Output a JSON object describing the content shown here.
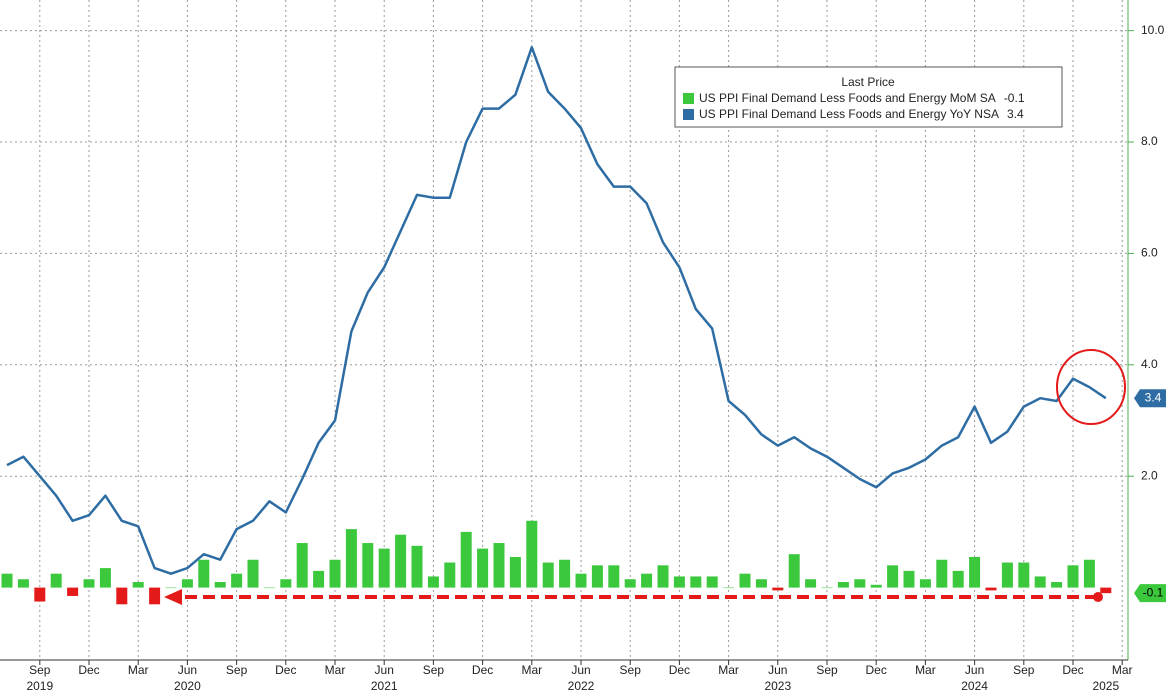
{
  "chart_data": {
    "type": "bar-line",
    "x": [
      "2019-07",
      "2019-08",
      "2019-09",
      "2019-10",
      "2019-11",
      "2019-12",
      "2020-01",
      "2020-02",
      "2020-03",
      "2020-04",
      "2020-05",
      "2020-06",
      "2020-07",
      "2020-08",
      "2020-09",
      "2020-10",
      "2020-11",
      "2020-12",
      "2021-01",
      "2021-02",
      "2021-03",
      "2021-04",
      "2021-05",
      "2021-06",
      "2021-07",
      "2021-08",
      "2021-09",
      "2021-10",
      "2021-11",
      "2021-12",
      "2022-01",
      "2022-02",
      "2022-03",
      "2022-04",
      "2022-05",
      "2022-06",
      "2022-07",
      "2022-08",
      "2022-09",
      "2022-10",
      "2022-11",
      "2022-12",
      "2023-01",
      "2023-02",
      "2023-03",
      "2023-04",
      "2023-05",
      "2023-06",
      "2023-07",
      "2023-08",
      "2023-09",
      "2023-10",
      "2023-11",
      "2023-12",
      "2024-01",
      "2024-02",
      "2024-03",
      "2024-04",
      "2024-05",
      "2024-06",
      "2024-07",
      "2024-08",
      "2024-09",
      "2024-10",
      "2024-11",
      "2024-12",
      "2025-01",
      "2025-02"
    ],
    "legend_title": "Last Price",
    "series": [
      {
        "name": "US PPI Final Demand Less Foods and Energy MoM SA",
        "type": "bar",
        "color": "#3cc83c",
        "negative_color": "#e41a1a",
        "end_label": "-0.1",
        "values": [
          0.25,
          0.15,
          -0.25,
          0.25,
          -0.15,
          0.15,
          0.35,
          -0.3,
          0.1,
          -0.3,
          0.0,
          0.15,
          0.5,
          0.1,
          0.25,
          0.5,
          0.0,
          0.15,
          0.8,
          0.3,
          0.5,
          1.05,
          0.8,
          0.7,
          0.95,
          0.75,
          0.2,
          0.45,
          1.0,
          0.7,
          0.8,
          0.55,
          1.2,
          0.45,
          0.5,
          0.25,
          0.4,
          0.4,
          0.15,
          0.25,
          0.4,
          0.2,
          0.2,
          0.2,
          0.0,
          0.25,
          0.15,
          -0.05,
          0.6,
          0.15,
          0.0,
          0.1,
          0.15,
          0.05,
          0.4,
          0.3,
          0.15,
          0.5,
          0.3,
          0.55,
          -0.05,
          0.45,
          0.45,
          0.2,
          0.1,
          0.4,
          0.5,
          -0.1
        ]
      },
      {
        "name": "US PPI Final Demand Less Foods and Energy YoY NSA",
        "type": "line",
        "color": "#2e6da4",
        "end_label": "3.4",
        "values": [
          2.2,
          2.35,
          2.0,
          1.65,
          1.2,
          1.3,
          1.65,
          1.2,
          1.1,
          0.35,
          0.25,
          0.35,
          0.6,
          0.5,
          1.05,
          1.2,
          1.55,
          1.35,
          1.95,
          2.6,
          3.0,
          4.6,
          5.3,
          5.75,
          6.4,
          7.05,
          7.0,
          7.0,
          8.0,
          8.6,
          8.6,
          8.85,
          9.7,
          8.9,
          8.6,
          8.25,
          7.6,
          7.2,
          7.2,
          6.9,
          6.2,
          5.75,
          5.0,
          4.65,
          3.35,
          3.1,
          2.75,
          2.55,
          2.7,
          2.5,
          2.35,
          2.15,
          1.95,
          1.8,
          2.05,
          2.15,
          2.3,
          2.55,
          2.7,
          3.25,
          2.6,
          2.8,
          3.25,
          3.4,
          3.35,
          3.75,
          3.6,
          3.4
        ]
      }
    ],
    "ylim": [
      -1.3,
      10.55
    ],
    "yticks": [
      {
        "value": 2,
        "label": "2.0"
      },
      {
        "value": 4,
        "label": "4.0"
      },
      {
        "value": 6,
        "label": "6.0"
      },
      {
        "value": 8,
        "label": "8.0"
      },
      {
        "value": 10,
        "label": "10.0"
      }
    ],
    "xticks": [
      {
        "value": "2019-09",
        "label": "Sep"
      },
      {
        "value": "2019-12",
        "label": "Dec"
      },
      {
        "value": "2020-03",
        "label": "Mar"
      },
      {
        "value": "2020-06",
        "label": "Jun"
      },
      {
        "value": "2020-09",
        "label": "Sep"
      },
      {
        "value": "2020-12",
        "label": "Dec"
      },
      {
        "value": "2021-03",
        "label": "Mar"
      },
      {
        "value": "2021-06",
        "label": "Jun"
      },
      {
        "value": "2021-09",
        "label": "Sep"
      },
      {
        "value": "2021-12",
        "label": "Dec"
      },
      {
        "value": "2022-03",
        "label": "Mar"
      },
      {
        "value": "2022-06",
        "label": "Jun"
      },
      {
        "value": "2022-09",
        "label": "Sep"
      },
      {
        "value": "2022-12",
        "label": "Dec"
      },
      {
        "value": "2023-03",
        "label": "Mar"
      },
      {
        "value": "2023-06",
        "label": "Jun"
      },
      {
        "value": "2023-09",
        "label": "Sep"
      },
      {
        "value": "2023-12",
        "label": "Dec"
      },
      {
        "value": "2024-03",
        "label": "Mar"
      },
      {
        "value": "2024-06",
        "label": "Jun"
      },
      {
        "value": "2024-09",
        "label": "Sep"
      },
      {
        "value": "2024-12",
        "label": "Dec"
      },
      {
        "value": "2025-03",
        "label": "Mar"
      }
    ],
    "year_labels": [
      {
        "value": "2019-09",
        "label": "2019"
      },
      {
        "value": "2020-06",
        "label": "2020"
      },
      {
        "value": "2021-06",
        "label": "2021"
      },
      {
        "value": "2022-06",
        "label": "2022"
      },
      {
        "value": "2023-06",
        "label": "2023"
      },
      {
        "value": "2024-06",
        "label": "2024"
      },
      {
        "value": "2025-02",
        "label": "2025"
      }
    ],
    "grid": true
  }
}
